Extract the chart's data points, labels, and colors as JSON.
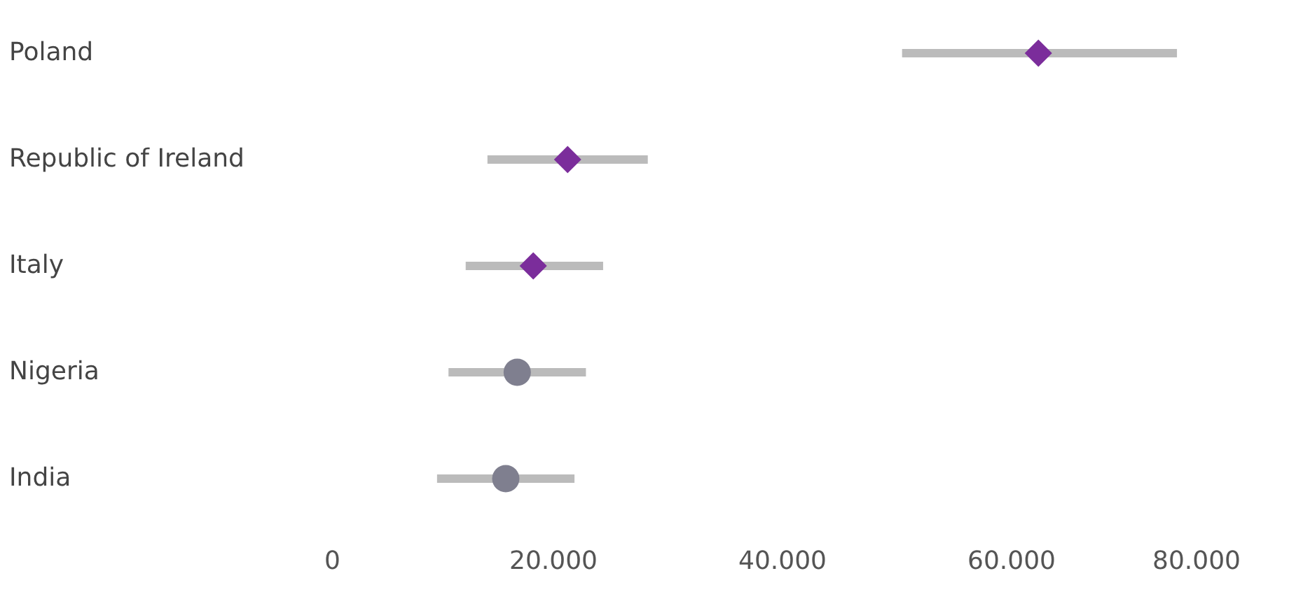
{
  "chart_data": {
    "type": "scatter",
    "orientation": "horizontal",
    "categories": [
      "Poland",
      "Republic of Ireland",
      "Italy",
      "Nigeria",
      "India"
    ],
    "series": [
      {
        "color": "#7b2d9b",
        "marker": "diamond",
        "values": [
          62400,
          21300,
          18300,
          null,
          null
        ],
        "errors": [
          [
            50500,
            74500
          ],
          [
            14300,
            28300
          ],
          [
            12400,
            24400
          ],
          null,
          null
        ]
      },
      {
        "color": "#7f7f8f",
        "marker": "circle",
        "values": [
          null,
          null,
          null,
          16900,
          15900
        ],
        "errors": [
          null,
          null,
          null,
          [
            10900,
            22900
          ],
          [
            9900,
            21900
          ]
        ]
      }
    ],
    "xlim": [
      0,
      80000
    ],
    "xticks": [
      0,
      {
        "value": 20000,
        "label": "20.000"
      },
      {
        "value": 40000,
        "label": "40.000"
      },
      {
        "value": 60000,
        "label": "60.000"
      },
      {
        "value": 80000,
        "label": "80.000"
      }
    ],
    "grid": false
  }
}
